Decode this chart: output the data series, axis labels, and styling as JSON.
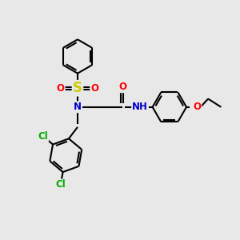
{
  "bg_color": "#e8e8e8",
  "bond_color": "#000000",
  "bond_width": 1.5,
  "atom_colors": {
    "N": "#0000cc",
    "O": "#ff0000",
    "S": "#cccc00",
    "Cl": "#00aa00",
    "C": "#000000",
    "H": "#000000"
  },
  "font_size_atom": 8.5,
  "scale": 1.0
}
